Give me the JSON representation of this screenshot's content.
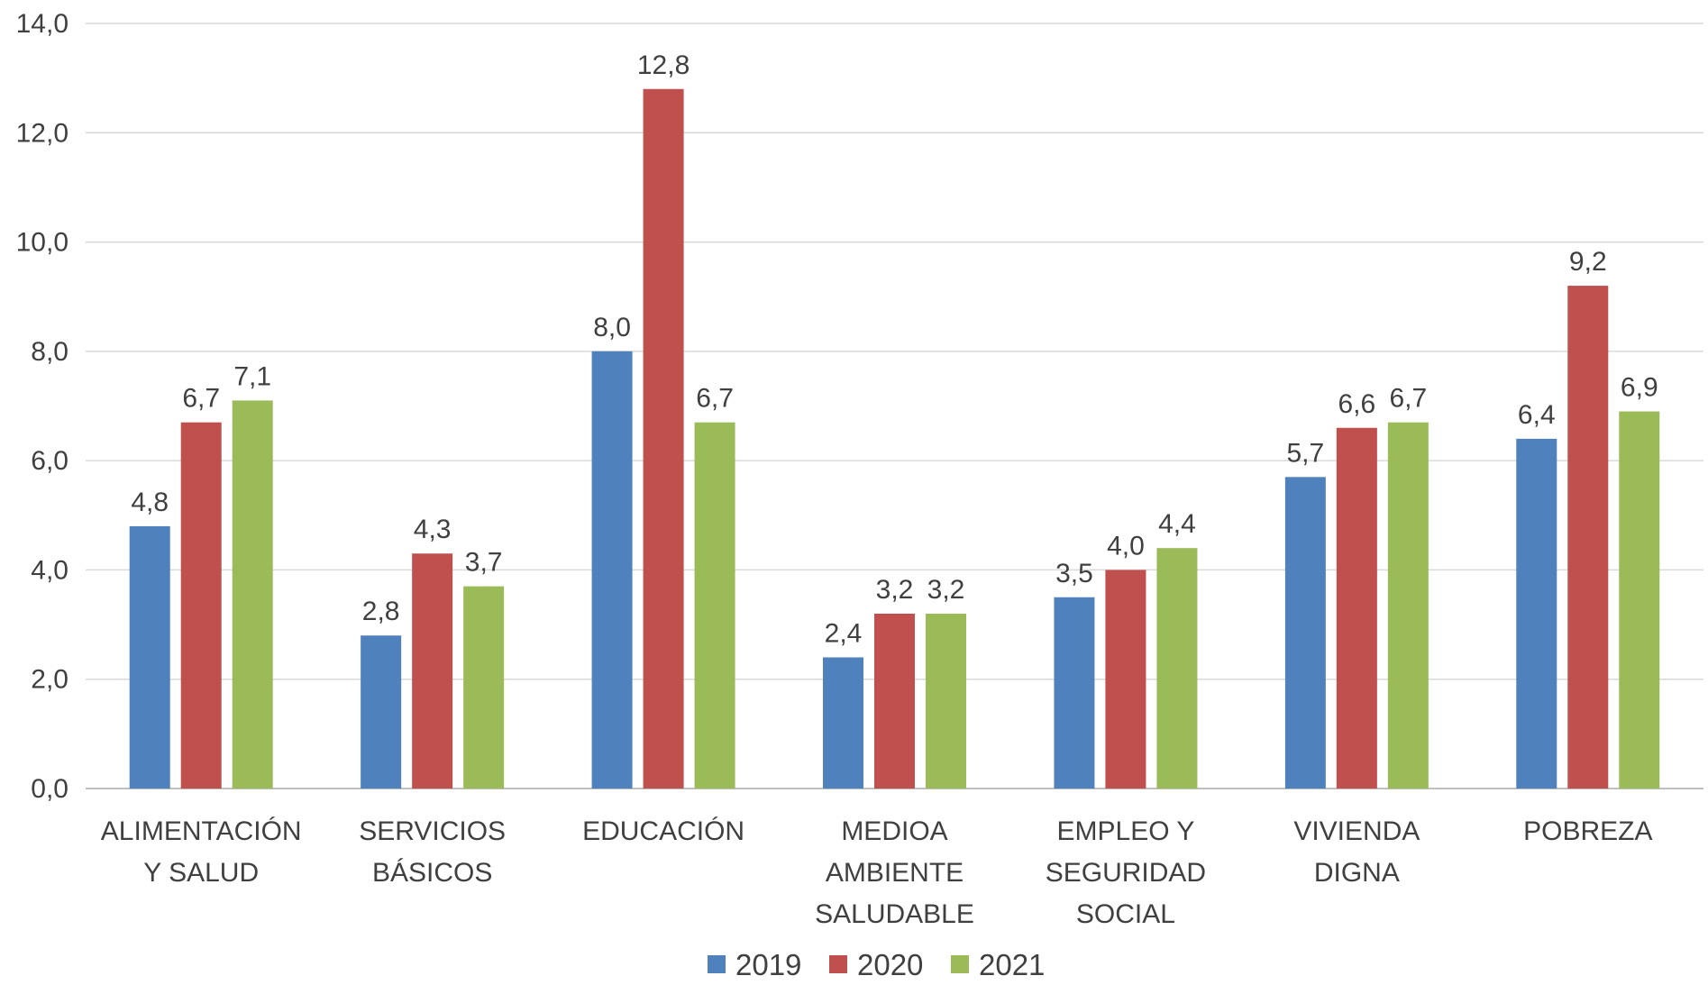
{
  "chart_data": {
    "type": "bar",
    "categories": [
      [
        "ALIMENTACIÓN",
        "Y SALUD"
      ],
      [
        "SERVICIOS",
        "BÁSICOS"
      ],
      [
        "EDUCACIÓN"
      ],
      [
        "MEDIOA",
        "AMBIENTE",
        "SALUDABLE"
      ],
      [
        "EMPLEO Y",
        "SEGURIDAD",
        "SOCIAL"
      ],
      [
        "VIVIENDA",
        "DIGNA"
      ],
      [
        "POBREZA"
      ]
    ],
    "series": [
      {
        "name": "2019",
        "color": "#4F81BD",
        "values": [
          4.8,
          2.8,
          8.0,
          2.4,
          3.5,
          5.7,
          6.4
        ],
        "labels": [
          "4,8",
          "2,8",
          "8,0",
          "2,4",
          "3,5",
          "5,7",
          "6,4"
        ]
      },
      {
        "name": "2020",
        "color": "#C0504D",
        "values": [
          6.7,
          4.3,
          12.8,
          3.2,
          4.0,
          6.6,
          9.2
        ],
        "labels": [
          "6,7",
          "4,3",
          "12,8",
          "3,2",
          "4,0",
          "6,6",
          "9,2"
        ]
      },
      {
        "name": "2021",
        "color": "#9BBB59",
        "values": [
          7.1,
          3.7,
          6.7,
          3.2,
          4.4,
          6.7,
          6.9
        ],
        "labels": [
          "7,1",
          "3,7",
          "6,7",
          "3,2",
          "4,4",
          "6,7",
          "6,9"
        ]
      }
    ],
    "ylim": [
      0,
      14
    ],
    "yticks": [
      0,
      2,
      4,
      6,
      8,
      10,
      12,
      14
    ],
    "ytick_labels": [
      "0,0",
      "2,0",
      "4,0",
      "6,0",
      "8,0",
      "10,0",
      "12,0",
      "14,0"
    ],
    "grid": true,
    "legend_position": "bottom",
    "title": "",
    "xlabel": "",
    "ylabel": ""
  }
}
